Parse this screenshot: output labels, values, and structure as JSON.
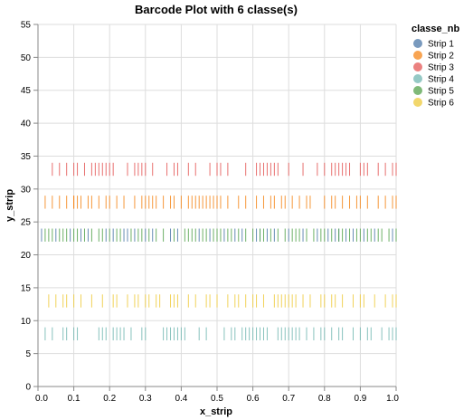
{
  "chart_data": {
    "type": "strip",
    "title": "Barcode Plot with 6 classe(s)",
    "xlabel": "x_strip",
    "ylabel": "y_strip",
    "xlim": [
      0,
      1
    ],
    "ylim": [
      0,
      55
    ],
    "x_ticks": [
      "0.0",
      "0.1",
      "0.2",
      "0.3",
      "0.4",
      "0.5",
      "0.6",
      "0.7",
      "0.8",
      "0.9",
      "1.0"
    ],
    "y_ticks": [
      "0",
      "5",
      "10",
      "15",
      "20",
      "25",
      "30",
      "35",
      "40",
      "45",
      "50",
      "55"
    ],
    "grid": true,
    "legend_title": "classe_nb",
    "legend_position": "right",
    "series": [
      {
        "name": "Strip 1",
        "color": "#4c78a8",
        "y": 23,
        "x": [
          0.01,
          0.05,
          0.09,
          0.12,
          0.14,
          0.19,
          0.21,
          0.24,
          0.25,
          0.27,
          0.3,
          0.32,
          0.37,
          0.39,
          0.45,
          0.48,
          0.52,
          0.55,
          0.57,
          0.61,
          0.62,
          0.64,
          0.66,
          0.7,
          0.74,
          0.78,
          0.81,
          0.83,
          0.84,
          0.86,
          0.88,
          0.91,
          0.94,
          0.99
        ]
      },
      {
        "name": "Strip 2",
        "color": "#f58518",
        "y": 28,
        "x": [
          0.0,
          0.02,
          0.04,
          0.06,
          0.08,
          0.1,
          0.1,
          0.11,
          0.12,
          0.14,
          0.15,
          0.17,
          0.19,
          0.2,
          0.22,
          0.24,
          0.27,
          0.29,
          0.3,
          0.31,
          0.32,
          0.33,
          0.35,
          0.37,
          0.38,
          0.4,
          0.42,
          0.43,
          0.44,
          0.45,
          0.46,
          0.47,
          0.48,
          0.49,
          0.5,
          0.51,
          0.53,
          0.56,
          0.58,
          0.61,
          0.63,
          0.65,
          0.66,
          0.68,
          0.69,
          0.71,
          0.73,
          0.75,
          0.76,
          0.8,
          0.82,
          0.83,
          0.85,
          0.87,
          0.89,
          0.9,
          0.92,
          0.95,
          0.97,
          0.99,
          1.0
        ]
      },
      {
        "name": "Strip 3",
        "color": "#e45756",
        "y": 33,
        "x": [
          0.0,
          0.04,
          0.06,
          0.08,
          0.1,
          0.11,
          0.13,
          0.15,
          0.16,
          0.17,
          0.18,
          0.19,
          0.2,
          0.21,
          0.25,
          0.27,
          0.28,
          0.29,
          0.3,
          0.32,
          0.36,
          0.38,
          0.39,
          0.42,
          0.44,
          0.48,
          0.5,
          0.51,
          0.53,
          0.58,
          0.61,
          0.62,
          0.63,
          0.64,
          0.65,
          0.66,
          0.67,
          0.7,
          0.74,
          0.78,
          0.8,
          0.82,
          0.83,
          0.84,
          0.85,
          0.86,
          0.87,
          0.9,
          0.91,
          0.92,
          0.95,
          0.97,
          0.99,
          1.0
        ]
      },
      {
        "name": "Strip 4",
        "color": "#72b7b2",
        "y": 8,
        "x": [
          0.0,
          0.02,
          0.04,
          0.07,
          0.08,
          0.1,
          0.11,
          0.17,
          0.18,
          0.19,
          0.21,
          0.22,
          0.23,
          0.24,
          0.26,
          0.29,
          0.3,
          0.35,
          0.36,
          0.37,
          0.38,
          0.39,
          0.4,
          0.41,
          0.45,
          0.47,
          0.52,
          0.54,
          0.55,
          0.57,
          0.58,
          0.59,
          0.6,
          0.61,
          0.62,
          0.63,
          0.64,
          0.67,
          0.68,
          0.69,
          0.7,
          0.71,
          0.72,
          0.73,
          0.75,
          0.77,
          0.79,
          0.8,
          0.82,
          0.84,
          0.85,
          0.88,
          0.9,
          0.92,
          0.93,
          0.96,
          0.98,
          0.99,
          1.0
        ]
      },
      {
        "name": "Strip 5",
        "color": "#54a24b",
        "y": 23,
        "x": [
          0.0,
          0.02,
          0.03,
          0.04,
          0.06,
          0.07,
          0.08,
          0.1,
          0.11,
          0.13,
          0.15,
          0.17,
          0.18,
          0.2,
          0.22,
          0.23,
          0.26,
          0.28,
          0.29,
          0.31,
          0.33,
          0.35,
          0.38,
          0.41,
          0.42,
          0.43,
          0.44,
          0.46,
          0.47,
          0.49,
          0.5,
          0.51,
          0.53,
          0.54,
          0.56,
          0.58,
          0.6,
          0.62,
          0.63,
          0.65,
          0.67,
          0.69,
          0.71,
          0.72,
          0.73,
          0.75,
          0.77,
          0.79,
          0.8,
          0.82,
          0.84,
          0.85,
          0.87,
          0.89,
          0.9,
          0.92,
          0.93,
          0.95,
          0.96,
          0.98,
          1.0
        ]
      },
      {
        "name": "Strip 6",
        "color": "#eeca3b",
        "y": 13,
        "x": [
          0.0,
          0.03,
          0.05,
          0.07,
          0.08,
          0.1,
          0.12,
          0.15,
          0.18,
          0.21,
          0.22,
          0.25,
          0.27,
          0.28,
          0.3,
          0.31,
          0.33,
          0.34,
          0.37,
          0.38,
          0.39,
          0.42,
          0.44,
          0.47,
          0.48,
          0.5,
          0.53,
          0.55,
          0.56,
          0.58,
          0.6,
          0.61,
          0.63,
          0.66,
          0.67,
          0.68,
          0.69,
          0.7,
          0.71,
          0.72,
          0.74,
          0.76,
          0.79,
          0.8,
          0.82,
          0.83,
          0.85,
          0.88,
          0.9,
          0.91,
          0.94,
          0.97,
          0.99,
          1.0
        ]
      }
    ]
  }
}
